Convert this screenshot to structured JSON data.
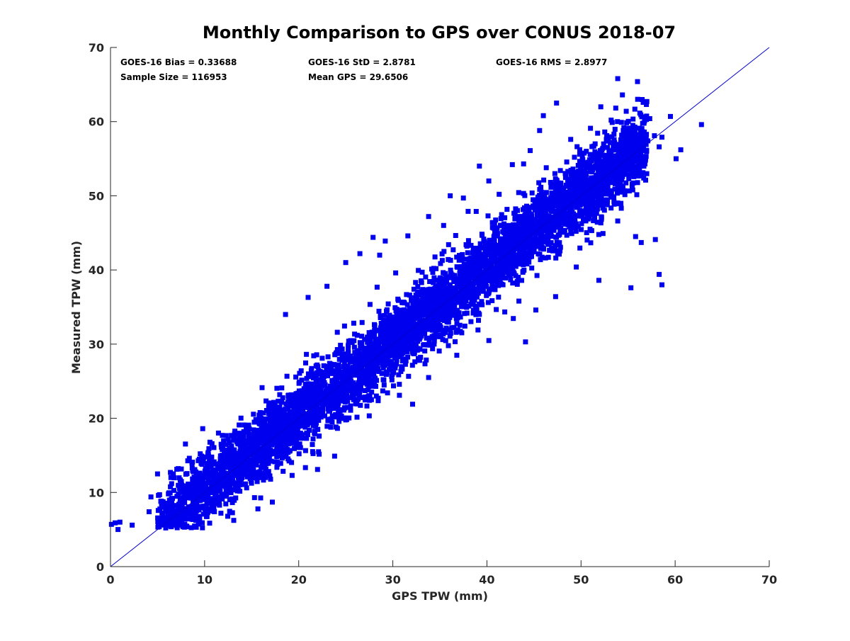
{
  "chart_data": {
    "type": "scatter",
    "title": "Monthly Comparison to GPS over CONUS 2018-07",
    "xlabel": "GPS TPW (mm)",
    "ylabel": "Measured TPW (mm)",
    "xlim": [
      0,
      70
    ],
    "ylim": [
      0,
      70
    ],
    "xticks": [
      "0",
      "10",
      "20",
      "30",
      "40",
      "50",
      "60",
      "70"
    ],
    "yticks": [
      "0",
      "10",
      "20",
      "30",
      "40",
      "50",
      "60",
      "70"
    ],
    "grid": false,
    "colors": {
      "points": "#0000ee",
      "reference_line": "#0000cc",
      "axes": "#262626"
    },
    "reference_line": {
      "x": [
        0,
        70
      ],
      "y": [
        0,
        70
      ]
    },
    "annotations": {
      "bias": "GOES-16 Bias = 0.33688",
      "std": "GOES-16 StD = 2.8781",
      "rms": "GOES-16 RMS = 2.8977",
      "sample_size": "Sample Size = 116953",
      "mean_gps": "Mean GPS = 29.6506"
    },
    "outliers": {
      "x": [
        0.1,
        0.5,
        1.0,
        0.8,
        2.3,
        4.3,
        5.0,
        4.1,
        6.7,
        9.8,
        12.5,
        16.0,
        17.9,
        18.6,
        21.0,
        22.5,
        23.0,
        24.1,
        25.0,
        26.5,
        27.9,
        28.6,
        29.2,
        30.3,
        31.6,
        33.8,
        35.4,
        36.1,
        37.5,
        38.0,
        39.2,
        40.2,
        41.3,
        42.7,
        43.9,
        44.6,
        45.6,
        46.0,
        47.4,
        47.8,
        48.9,
        49.3,
        51.0,
        51.5,
        52.1,
        53.2,
        53.9,
        54.4,
        54.8,
        55.5,
        56.0,
        56.6,
        57.1,
        57.3,
        57.8,
        58.3,
        58.6,
        59.5,
        60.1,
        60.6,
        62.8,
        33.8,
        34.9,
        35.9,
        41.6,
        45.2,
        47.3,
        49.5,
        51.9,
        53.9,
        55.3,
        55.8,
        56.4,
        57.9,
        58.3,
        58.6,
        17.2,
        15.3,
        22.0,
        19.3,
        32.1,
        36.8,
        26.9,
        24.3,
        30.7,
        39.1,
        43.4,
        44.1
      ],
      "y": [
        5.7,
        5.9,
        6.0,
        5.0,
        5.6,
        9.4,
        12.5,
        7.4,
        5.6,
        18.6,
        13.6,
        20.0,
        17.5,
        34.0,
        36.3,
        28.1,
        37.8,
        31.6,
        41.0,
        42.2,
        44.4,
        42.0,
        43.9,
        39.6,
        44.6,
        47.2,
        46.0,
        50.0,
        49.7,
        47.9,
        54.0,
        52.0,
        50.2,
        54.2,
        54.3,
        56.1,
        58.8,
        60.8,
        62.5,
        53.4,
        57.6,
        55.2,
        59.1,
        57.0,
        62.0,
        60.2,
        65.8,
        63.6,
        61.4,
        59.5,
        65.4,
        62.6,
        57.4,
        60.4,
        58.1,
        56.6,
        57.9,
        60.7,
        55.0,
        56.2,
        59.6,
        25.5,
        31.2,
        29.8,
        41.3,
        34.6,
        36.4,
        40.4,
        38.6,
        46.6,
        37.6,
        44.5,
        43.7,
        44.1,
        39.4,
        38.0,
        8.7,
        9.3,
        13.1,
        12.3,
        21.9,
        28.5,
        25.8,
        22.8,
        23.1,
        33.2,
        35.8,
        30.3
      ]
    }
  }
}
